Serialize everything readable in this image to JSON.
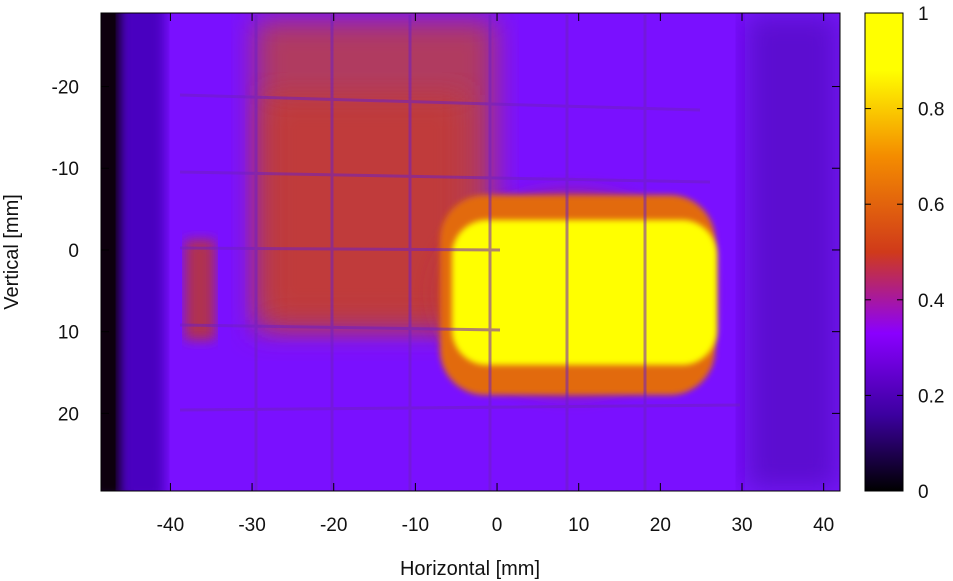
{
  "chart_data": {
    "type": "heatmap",
    "title": "",
    "xlabel": "Horizontal [mm]",
    "ylabel": "Vertical [mm]",
    "xlim": [
      -48.5,
      42
    ],
    "ylim": [
      -29,
      29.5
    ],
    "y_inverted": true,
    "x_ticks": [
      -40,
      -30,
      -20,
      -10,
      0,
      10,
      20,
      30,
      40
    ],
    "x_tick_labels": [
      "-40",
      "-30",
      "-20",
      "-10",
      "0",
      "10",
      "20",
      "30",
      "40"
    ],
    "y_ticks": [
      -20,
      -10,
      0,
      10,
      20
    ],
    "y_tick_labels": [
      "-20",
      "-10",
      "0",
      "10",
      "20"
    ],
    "colorbar": {
      "min": 0,
      "max": 1,
      "ticks": [
        0,
        0.2,
        0.4,
        0.6,
        0.8,
        1
      ],
      "tick_labels": [
        "0",
        "0.2",
        "0.4",
        "0.6",
        "0.8",
        "1"
      ],
      "colormap": [
        "#000000",
        "#3c00a0",
        "#8a00ff",
        "#d03a1a",
        "#f48c00",
        "#ffff00"
      ]
    },
    "grid": false,
    "intensity_regions": [
      {
        "region": "left edge, x < -45",
        "value": 0.05
      },
      {
        "region": "background, -45 < x < 40",
        "value": 0.25
      },
      {
        "region": "upper-left block area, -36 < x < 0, -29 < y < 15",
        "value": 0.45
      },
      {
        "region": "central halo, -8 < x < 28, -8 < y < 19",
        "value": 0.6
      },
      {
        "region": "hot core, -6 < x < 27, -3 < y < 15",
        "value": 1.0
      }
    ]
  }
}
